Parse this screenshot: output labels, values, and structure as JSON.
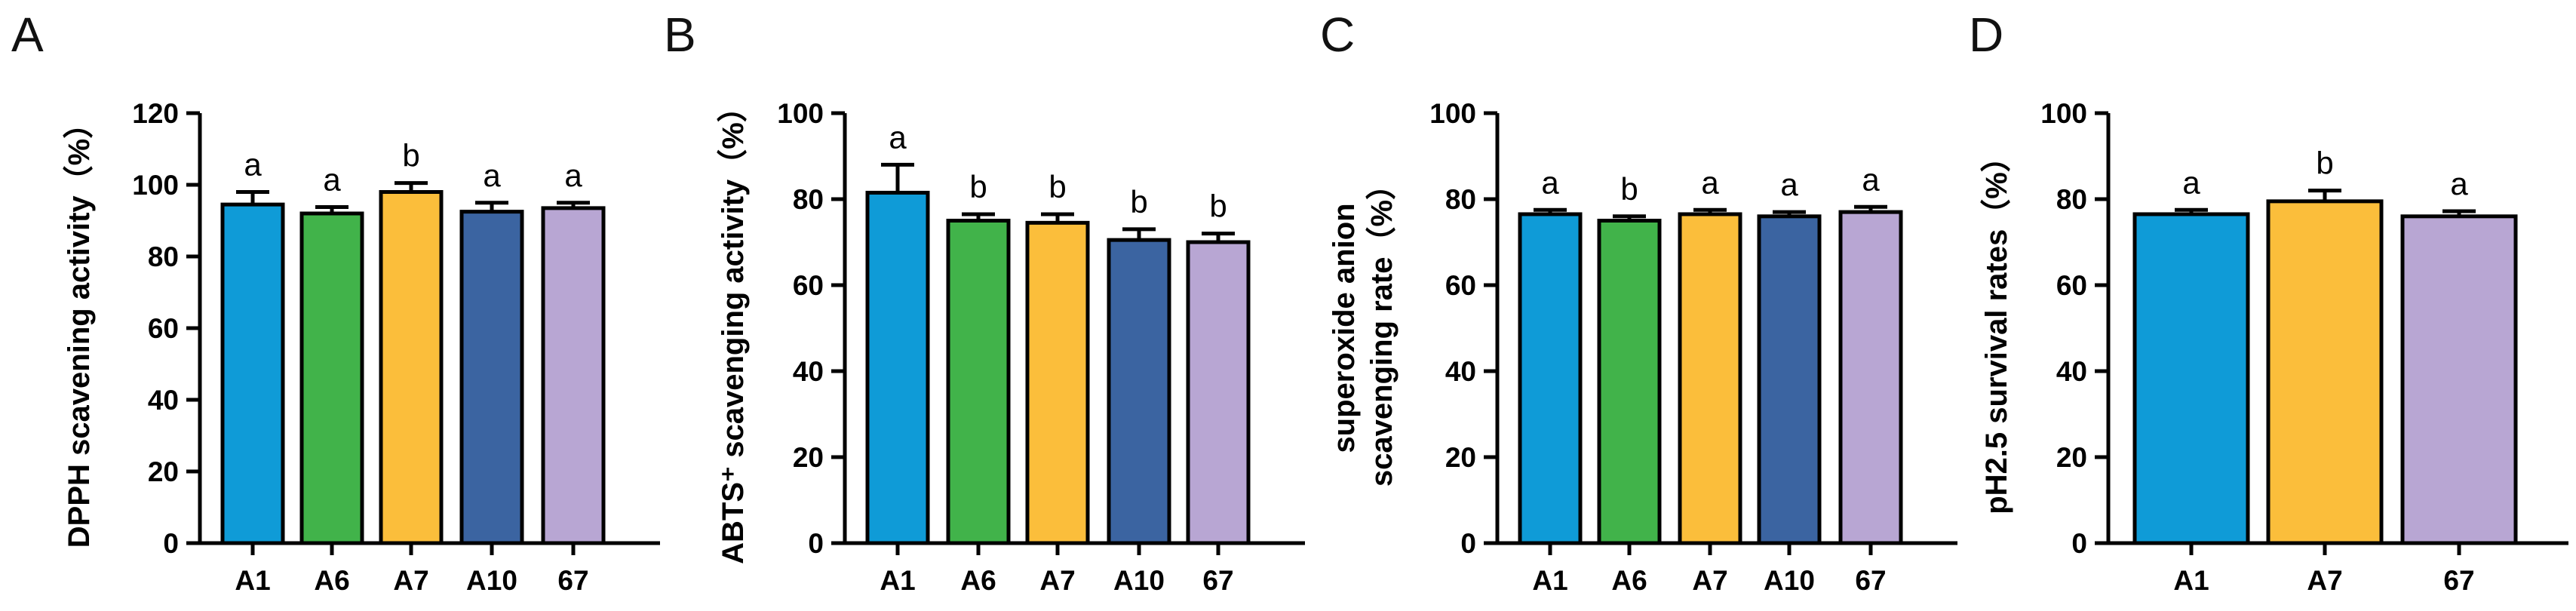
{
  "chart_data": [
    {
      "type": "bar",
      "panel": "A",
      "title": "",
      "xlabel": "",
      "ylabel": "DPPH scavening activity（%）",
      "ylabel_lines": [
        "DPPH scavening activity（%）"
      ],
      "ylim": [
        0,
        120
      ],
      "yticks": [
        0,
        20,
        40,
        60,
        80,
        100,
        120
      ],
      "categories": [
        "A1",
        "A6",
        "A7",
        "A10",
        "67"
      ],
      "values": [
        94.5,
        92.0,
        98.0,
        92.5,
        93.5
      ],
      "errors": [
        3.5,
        1.8,
        2.5,
        2.5,
        1.5
      ],
      "significance": [
        "a",
        "a",
        "b",
        "a",
        "a"
      ]
    },
    {
      "type": "bar",
      "panel": "B",
      "title": "",
      "xlabel": "",
      "ylabel": "ABTS⁺ scavenging activity（%）",
      "ylabel_lines": [
        "ABTS⁺ scavenging activity（%）"
      ],
      "ylim": [
        0,
        100
      ],
      "yticks": [
        0,
        20,
        40,
        60,
        80,
        100
      ],
      "categories": [
        "A1",
        "A6",
        "A7",
        "A10",
        "67"
      ],
      "values": [
        81.5,
        75.0,
        74.5,
        70.5,
        70.0
      ],
      "errors": [
        6.5,
        1.5,
        2.0,
        2.5,
        2.0
      ],
      "significance": [
        "a",
        "b",
        "b",
        "b",
        "b"
      ]
    },
    {
      "type": "bar",
      "panel": "C",
      "title": "",
      "xlabel": "",
      "ylabel": "superoxide anion scavenging rate（%）",
      "ylabel_lines": [
        "superoxide anion",
        "scavenging rate（%）"
      ],
      "ylim": [
        0,
        100
      ],
      "yticks": [
        0,
        20,
        40,
        60,
        80,
        100
      ],
      "categories": [
        "A1",
        "A6",
        "A7",
        "A10",
        "67"
      ],
      "values": [
        76.5,
        75.0,
        76.5,
        76.0,
        77.0
      ],
      "errors": [
        1.0,
        1.0,
        1.0,
        1.0,
        1.2
      ],
      "significance": [
        "a",
        "b",
        "a",
        "a",
        "a"
      ]
    },
    {
      "type": "bar",
      "panel": "D",
      "title": "",
      "xlabel": "",
      "ylabel": "pH2.5 survival rates（%）",
      "ylabel_lines": [
        "pH2.5 survival rates（%）"
      ],
      "ylim": [
        0,
        100
      ],
      "yticks": [
        0,
        20,
        40,
        60,
        80,
        100
      ],
      "categories": [
        "A1",
        "A7",
        "67"
      ],
      "values": [
        76.5,
        79.5,
        76.0
      ],
      "errors": [
        1.0,
        2.5,
        1.2
      ],
      "significance": [
        "a",
        "b",
        "a"
      ]
    }
  ],
  "colors": {
    "A1": "#0f9bd7",
    "A6": "#41b34a",
    "A7": "#fbbe3b",
    "A10": "#3b64a1",
    "67": "#b8a6d3",
    "axis": "#000000"
  }
}
